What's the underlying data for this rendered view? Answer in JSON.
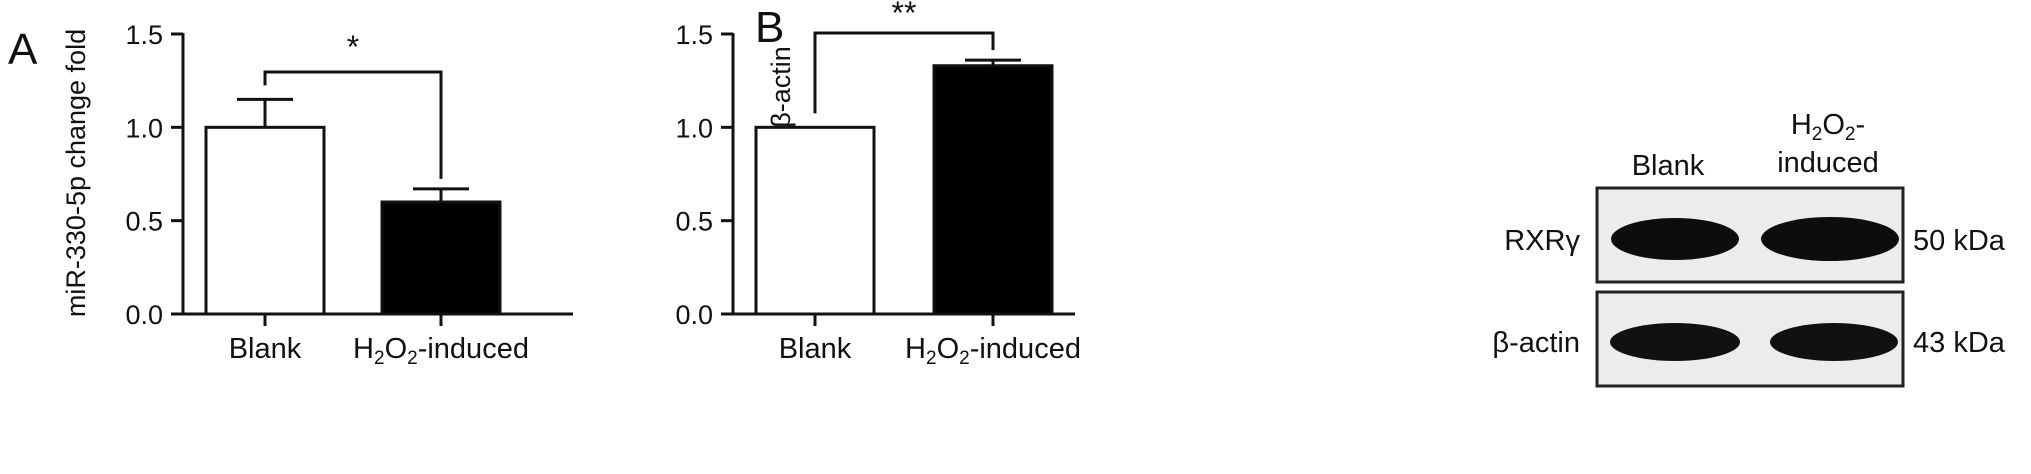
{
  "panels": {
    "a_letter": "A",
    "b_letter": "B"
  },
  "chart_data": [
    {
      "type": "bar",
      "panel": "A",
      "ylabel": "miR-330-5p change fold",
      "ylim": [
        0,
        1.5
      ],
      "yticks": [
        "0.0",
        "0.5",
        "1.0",
        "1.5"
      ],
      "categories": [
        "Blank",
        "H2O2-induced"
      ],
      "category_labels": [
        {
          "base": "Blank"
        },
        {
          "p1": "H",
          "s1": "2",
          "p2": "O",
          "s2": "2",
          "p3": "-induced"
        }
      ],
      "values": [
        1.0,
        0.6
      ],
      "error_upper": [
        0.15,
        0.07
      ],
      "bar_fill": [
        "#ffffff",
        "#000000"
      ],
      "significance": "*"
    },
    {
      "type": "bar",
      "panel": "B",
      "ylabel": "RXRγ/β-actin",
      "ylim": [
        0,
        1.5
      ],
      "yticks": [
        "0.0",
        "0.5",
        "1.0",
        "1.5"
      ],
      "categories": [
        "Blank",
        "H2O2-induced"
      ],
      "category_labels": [
        {
          "base": "Blank"
        },
        {
          "p1": "H",
          "s1": "2",
          "p2": "O",
          "s2": "2",
          "p3": "-induced"
        }
      ],
      "values": [
        1.0,
        1.33
      ],
      "error_upper": [
        0.0,
        0.03
      ],
      "bar_fill": [
        "#ffffff",
        "#000000"
      ],
      "significance": "**"
    }
  ],
  "blot": {
    "col_blank": "Blank",
    "col_h2o2_line1": {
      "p1": "H",
      "s1": "2",
      "p2": "O",
      "s2": "2",
      "p3": "-"
    },
    "col_h2o2_line2": "induced",
    "row_labels": [
      "RXRγ",
      "β-actin"
    ],
    "sizes": [
      "50 kDa",
      "43 kDa"
    ]
  }
}
